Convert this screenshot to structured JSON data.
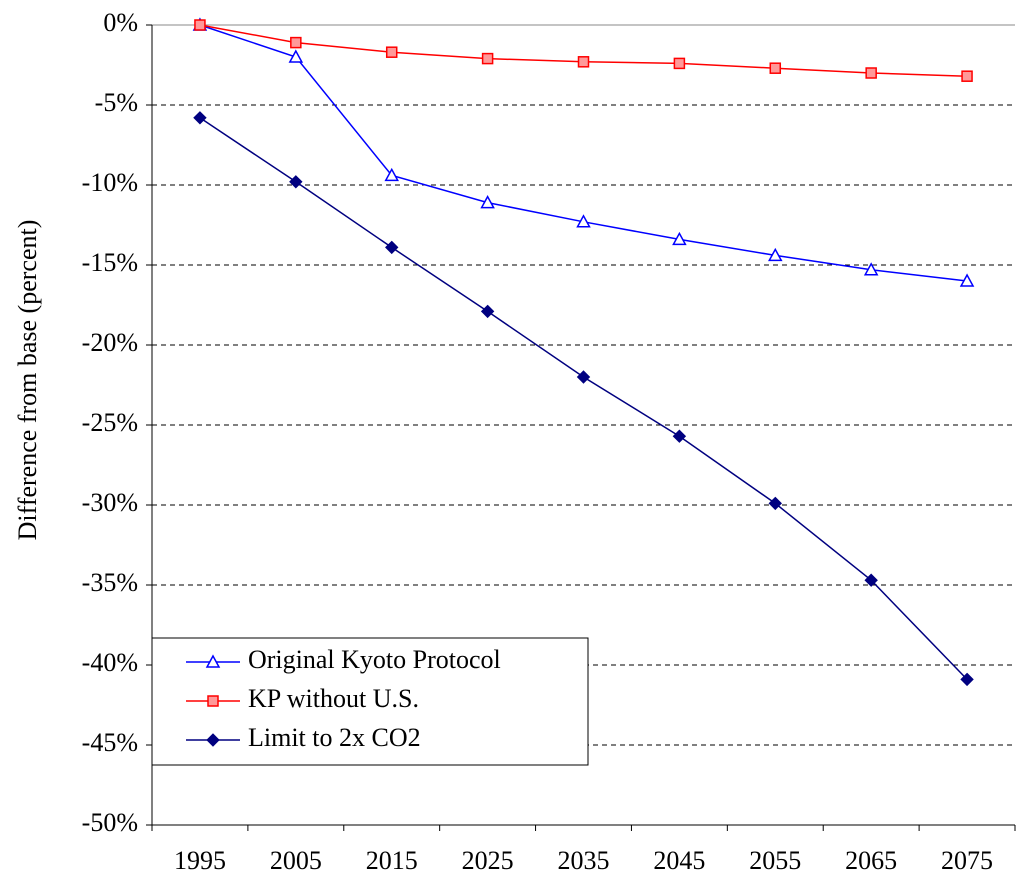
{
  "chart_data": {
    "type": "line",
    "ylabel": "Difference from base (percent)",
    "categories": [
      "1995",
      "2005",
      "2015",
      "2025",
      "2035",
      "2045",
      "2055",
      "2065",
      "2075"
    ],
    "series": [
      {
        "name": "Original Kyoto Protocol",
        "color": "#0000ff",
        "marker": "triangle",
        "values": [
          0,
          -2,
          -9.4,
          -11.1,
          -12.3,
          -13.4,
          -14.4,
          -15.3,
          -16.0
        ]
      },
      {
        "name": "KP without U.S.",
        "color": "#ff0000",
        "marker": "square",
        "values": [
          0,
          -1.1,
          -1.7,
          -2.1,
          -2.3,
          -2.4,
          -2.7,
          -3.0,
          -3.2
        ]
      },
      {
        "name": "Limit to 2x CO2",
        "color": "#000080",
        "marker": "diamond",
        "values": [
          -5.8,
          -9.8,
          -13.9,
          -17.9,
          -22.0,
          -25.7,
          -29.9,
          -34.7,
          -40.9
        ]
      }
    ],
    "ylim": [
      -50,
      0
    ],
    "yticks": [
      {
        "value": 0,
        "label": "0%"
      },
      {
        "value": -5,
        "label": "-5%"
      },
      {
        "value": -10,
        "label": "-10%"
      },
      {
        "value": -15,
        "label": "-15%"
      },
      {
        "value": -20,
        "label": "-20%"
      },
      {
        "value": -25,
        "label": "-25%"
      },
      {
        "value": -30,
        "label": "-30%"
      },
      {
        "value": -35,
        "label": "-35%"
      },
      {
        "value": -40,
        "label": "-40%"
      },
      {
        "value": -45,
        "label": "-45%"
      },
      {
        "value": -50,
        "label": "-50%"
      }
    ],
    "grid": true,
    "legend": "lower left"
  }
}
